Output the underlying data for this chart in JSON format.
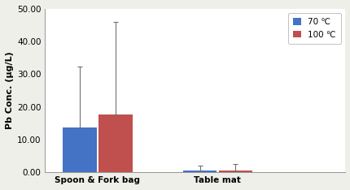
{
  "categories": [
    "Spoon & Fork bag",
    "Table mat"
  ],
  "series": [
    {
      "label": "70 ℃",
      "color": "#4472C4",
      "values": [
        13.8,
        0.5
      ],
      "errors_upper": [
        18.5,
        1.5
      ]
    },
    {
      "label": "100 ℃",
      "color": "#C0504D",
      "values": [
        17.6,
        0.65
      ],
      "errors_upper": [
        28.5,
        1.85
      ]
    }
  ],
  "ylabel": "Pb Conc. (μg/L)",
  "ylim": [
    0,
    50
  ],
  "yticks": [
    0.0,
    10.0,
    20.0,
    30.0,
    40.0,
    50.0
  ],
  "bar_width": 0.18,
  "group_centers": [
    0.28,
    0.92
  ],
  "xlim": [
    0.0,
    1.6
  ],
  "background_color": "#efefea",
  "plot_bg_color": "#ffffff",
  "title_fontsize": 8,
  "axis_fontsize": 7.5,
  "ylabel_fontsize": 8,
  "legend_fontsize": 7.5
}
